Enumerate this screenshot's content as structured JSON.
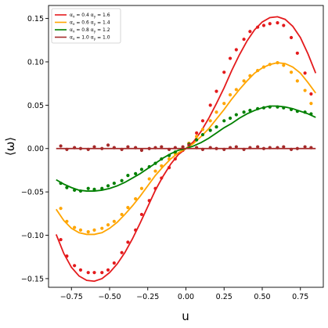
{
  "chart_data": {
    "type": "scatter",
    "xlabel": "u",
    "ylabel": "⟨ω⟩",
    "xlim": [
      -0.9,
      0.9
    ],
    "ylim": [
      -0.16,
      0.165
    ],
    "xticks": [
      -0.75,
      -0.5,
      -0.25,
      0.0,
      0.25,
      0.5,
      0.75
    ],
    "xtick_labels": [
      "−0.75",
      "−0.50",
      "−0.25",
      "0.00",
      "0.25",
      "0.50",
      "0.75"
    ],
    "yticks": [
      -0.15,
      -0.1,
      -0.05,
      0.0,
      0.05,
      0.1,
      0.15
    ],
    "ytick_labels": [
      "−0.15",
      "−0.10",
      "−0.05",
      "0.00",
      "0.05",
      "0.10",
      "0.15"
    ],
    "grid": false,
    "legend_position": "top-left",
    "series": [
      {
        "legend": {
          "a": "α",
          "sx": "x",
          "vx": " = 0.4 ",
          "b": "α",
          "sy": "y",
          "vy": " = 1.6"
        },
        "color": "#e41a1c",
        "curve_x": [
          -0.85,
          -0.8,
          -0.75,
          -0.7,
          -0.65,
          -0.6,
          -0.55,
          -0.5,
          -0.45,
          -0.4,
          -0.35,
          -0.3,
          -0.25,
          -0.2,
          -0.15,
          -0.1,
          -0.05,
          0.0,
          0.05,
          0.1,
          0.15,
          0.2,
          0.25,
          0.3,
          0.35,
          0.4,
          0.45,
          0.5,
          0.55,
          0.6,
          0.65,
          0.7,
          0.75,
          0.8,
          0.85
        ],
        "curve_y": [
          -0.099,
          -0.121,
          -0.137,
          -0.147,
          -0.152,
          -0.153,
          -0.15,
          -0.143,
          -0.133,
          -0.12,
          -0.104,
          -0.086,
          -0.067,
          -0.048,
          -0.032,
          -0.018,
          -0.007,
          0.0,
          0.008,
          0.02,
          0.035,
          0.052,
          0.07,
          0.09,
          0.108,
          0.124,
          0.137,
          0.146,
          0.151,
          0.152,
          0.149,
          0.141,
          0.128,
          0.109,
          0.087
        ],
        "points_x": [
          -0.82,
          -0.78,
          -0.73,
          -0.69,
          -0.64,
          -0.6,
          -0.55,
          -0.51,
          -0.47,
          -0.42,
          -0.38,
          -0.33,
          -0.29,
          -0.24,
          -0.2,
          -0.16,
          -0.11,
          -0.07,
          -0.02,
          0.02,
          0.07,
          0.11,
          0.16,
          0.2,
          0.25,
          0.29,
          0.33,
          0.38,
          0.42,
          0.47,
          0.51,
          0.55,
          0.6,
          0.64,
          0.69,
          0.73,
          0.78,
          0.82
        ],
        "points_y": [
          -0.105,
          -0.124,
          -0.135,
          -0.14,
          -0.143,
          -0.143,
          -0.143,
          -0.14,
          -0.132,
          -0.12,
          -0.108,
          -0.094,
          -0.076,
          -0.06,
          -0.046,
          -0.034,
          -0.022,
          -0.012,
          -0.002,
          0.006,
          0.018,
          0.032,
          0.05,
          0.066,
          0.088,
          0.104,
          0.114,
          0.126,
          0.135,
          0.14,
          0.142,
          0.144,
          0.145,
          0.142,
          0.128,
          0.11,
          0.087,
          0.063
        ]
      },
      {
        "legend": {
          "a": "α",
          "sx": "x",
          "vx": " = 0.6 ",
          "b": "α",
          "sy": "y",
          "vy": " = 1.4"
        },
        "color": "#ffa500",
        "curve_x": [
          -0.85,
          -0.8,
          -0.75,
          -0.7,
          -0.65,
          -0.6,
          -0.55,
          -0.5,
          -0.45,
          -0.4,
          -0.35,
          -0.3,
          -0.25,
          -0.2,
          -0.15,
          -0.1,
          -0.05,
          0.0,
          0.05,
          0.1,
          0.15,
          0.2,
          0.25,
          0.3,
          0.35,
          0.4,
          0.45,
          0.5,
          0.55,
          0.6,
          0.65,
          0.7,
          0.75,
          0.8,
          0.85
        ],
        "curve_y": [
          -0.07,
          -0.083,
          -0.092,
          -0.097,
          -0.099,
          -0.099,
          -0.097,
          -0.092,
          -0.085,
          -0.076,
          -0.066,
          -0.055,
          -0.043,
          -0.031,
          -0.021,
          -0.012,
          -0.005,
          0.0,
          0.006,
          0.014,
          0.023,
          0.034,
          0.045,
          0.057,
          0.068,
          0.078,
          0.087,
          0.093,
          0.097,
          0.099,
          0.098,
          0.094,
          0.087,
          0.076,
          0.064
        ],
        "points_x": [
          -0.82,
          -0.78,
          -0.73,
          -0.69,
          -0.64,
          -0.6,
          -0.55,
          -0.51,
          -0.47,
          -0.42,
          -0.38,
          -0.33,
          -0.29,
          -0.24,
          -0.2,
          -0.16,
          -0.11,
          -0.07,
          -0.02,
          0.02,
          0.07,
          0.11,
          0.16,
          0.2,
          0.25,
          0.29,
          0.33,
          0.38,
          0.42,
          0.47,
          0.51,
          0.55,
          0.6,
          0.64,
          0.69,
          0.73,
          0.78,
          0.82
        ],
        "points_y": [
          -0.069,
          -0.084,
          -0.091,
          -0.094,
          -0.096,
          -0.094,
          -0.092,
          -0.088,
          -0.084,
          -0.076,
          -0.068,
          -0.058,
          -0.046,
          -0.035,
          -0.026,
          -0.02,
          -0.012,
          -0.006,
          0.0,
          0.006,
          0.014,
          0.022,
          0.032,
          0.042,
          0.052,
          0.062,
          0.068,
          0.078,
          0.084,
          0.09,
          0.094,
          0.097,
          0.099,
          0.096,
          0.088,
          0.078,
          0.067,
          0.052
        ]
      },
      {
        "legend": {
          "a": "α",
          "sx": "x",
          "vx": " = 0.8 ",
          "b": "α",
          "sy": "y",
          "vy": " = 1.2"
        },
        "color": "#008000",
        "curve_x": [
          -0.85,
          -0.8,
          -0.75,
          -0.7,
          -0.65,
          -0.6,
          -0.55,
          -0.5,
          -0.45,
          -0.4,
          -0.35,
          -0.3,
          -0.25,
          -0.2,
          -0.15,
          -0.1,
          -0.05,
          0.0,
          0.05,
          0.1,
          0.15,
          0.2,
          0.25,
          0.3,
          0.35,
          0.4,
          0.45,
          0.5,
          0.55,
          0.6,
          0.65,
          0.7,
          0.75,
          0.8,
          0.85
        ],
        "curve_y": [
          -0.036,
          -0.041,
          -0.045,
          -0.048,
          -0.049,
          -0.049,
          -0.048,
          -0.046,
          -0.043,
          -0.039,
          -0.034,
          -0.029,
          -0.023,
          -0.017,
          -0.011,
          -0.006,
          -0.002,
          0.0,
          0.003,
          0.007,
          0.012,
          0.018,
          0.024,
          0.029,
          0.035,
          0.04,
          0.044,
          0.047,
          0.049,
          0.049,
          0.048,
          0.046,
          0.043,
          0.04,
          0.036
        ],
        "points_x": [
          -0.82,
          -0.78,
          -0.73,
          -0.69,
          -0.64,
          -0.6,
          -0.55,
          -0.51,
          -0.47,
          -0.42,
          -0.38,
          -0.33,
          -0.29,
          -0.24,
          -0.2,
          -0.16,
          -0.11,
          -0.07,
          -0.02,
          0.02,
          0.07,
          0.11,
          0.16,
          0.2,
          0.25,
          0.29,
          0.33,
          0.38,
          0.42,
          0.47,
          0.51,
          0.55,
          0.6,
          0.64,
          0.69,
          0.73,
          0.78,
          0.82
        ],
        "points_y": [
          -0.04,
          -0.045,
          -0.048,
          -0.049,
          -0.046,
          -0.047,
          -0.046,
          -0.043,
          -0.04,
          -0.037,
          -0.031,
          -0.029,
          -0.024,
          -0.021,
          -0.017,
          -0.012,
          -0.008,
          -0.004,
          0.0,
          0.005,
          0.01,
          0.016,
          0.021,
          0.025,
          0.032,
          0.035,
          0.039,
          0.042,
          0.044,
          0.046,
          0.047,
          0.048,
          0.048,
          0.047,
          0.045,
          0.043,
          0.042,
          0.04
        ]
      },
      {
        "legend": {
          "a": "α",
          "sx": "x",
          "vx": " = 1.0 ",
          "b": "α",
          "sy": "y",
          "vy": " = 1.0"
        },
        "color": "#a52a2a",
        "curve_x": [
          -0.85,
          0.85
        ],
        "curve_y": [
          0.0,
          0.0
        ],
        "points_x": [
          -0.82,
          -0.78,
          -0.73,
          -0.69,
          -0.64,
          -0.6,
          -0.55,
          -0.51,
          -0.47,
          -0.42,
          -0.38,
          -0.33,
          -0.29,
          -0.24,
          -0.2,
          -0.16,
          -0.11,
          -0.07,
          -0.02,
          0.02,
          0.07,
          0.11,
          0.16,
          0.2,
          0.25,
          0.29,
          0.33,
          0.38,
          0.42,
          0.47,
          0.51,
          0.55,
          0.6,
          0.64,
          0.69,
          0.73,
          0.78,
          0.82
        ],
        "points_y": [
          0.003,
          -0.001,
          0.001,
          0.0,
          -0.001,
          0.002,
          0.0,
          0.004,
          0.001,
          -0.001,
          0.002,
          0.001,
          -0.002,
          0.0,
          0.001,
          0.002,
          -0.001,
          0.001,
          0.002,
          0.004,
          0.001,
          -0.001,
          0.001,
          0.0,
          -0.001,
          0.001,
          0.002,
          -0.001,
          0.001,
          0.002,
          0.0,
          0.001,
          0.001,
          0.002,
          -0.001,
          0.0,
          0.002,
          0.001
        ]
      }
    ]
  }
}
